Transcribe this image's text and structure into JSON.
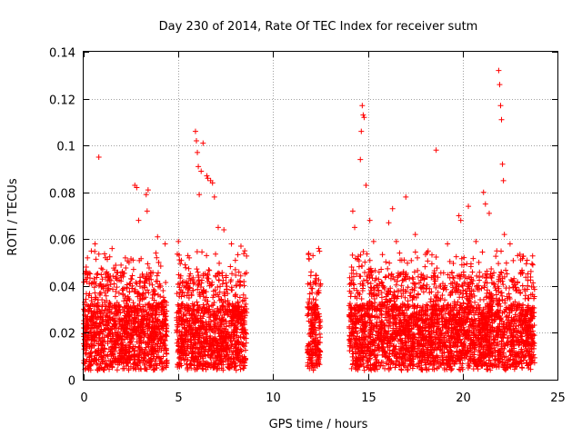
{
  "chart_data": {
    "type": "scatter",
    "title": "Day 230 of 2014, Rate Of TEC Index for receiver sutm",
    "xlabel": "GPS time / hours",
    "ylabel": "ROTI / TECUs",
    "xlim": [
      0,
      25
    ],
    "ylim": [
      0,
      0.14
    ],
    "x_ticks": [
      0,
      5,
      10,
      15,
      20,
      25
    ],
    "x_tick_labels": [
      "0",
      "5",
      "10",
      "15",
      "20",
      "25"
    ],
    "y_ticks": [
      0,
      0.02,
      0.04,
      0.06,
      0.08,
      0.1,
      0.12,
      0.14
    ],
    "y_tick_labels": [
      "0",
      "0.02",
      "0.04",
      "0.06",
      "0.08",
      "0.1",
      "0.12",
      "0.14"
    ],
    "grid": true,
    "marker": "+",
    "series_color": "#ff0000",
    "data_coverage": [
      {
        "start_hour": 0.0,
        "end_hour": 4.4
      },
      {
        "start_hour": 4.9,
        "end_hour": 8.6
      },
      {
        "start_hour": 11.8,
        "end_hour": 12.5
      },
      {
        "start_hour": 14.0,
        "end_hour": 23.8
      }
    ],
    "series": [
      {
        "name": "ROTI",
        "points": [
          [
            0.05,
            0.033
          ],
          [
            0.2,
            0.052
          ],
          [
            0.4,
            0.041
          ],
          [
            0.6,
            0.058
          ],
          [
            0.8,
            0.095
          ],
          [
            1.0,
            0.047
          ],
          [
            1.5,
            0.056
          ],
          [
            2.2,
            0.052
          ],
          [
            2.7,
            0.083
          ],
          [
            2.8,
            0.082
          ],
          [
            2.9,
            0.068
          ],
          [
            3.3,
            0.079
          ],
          [
            3.35,
            0.072
          ],
          [
            3.4,
            0.081
          ],
          [
            3.9,
            0.061
          ],
          [
            4.3,
            0.058
          ],
          [
            5.0,
            0.059
          ],
          [
            5.5,
            0.053
          ],
          [
            5.9,
            0.106
          ],
          [
            5.95,
            0.102
          ],
          [
            6.0,
            0.097
          ],
          [
            6.05,
            0.091
          ],
          [
            6.1,
            0.079
          ],
          [
            6.2,
            0.089
          ],
          [
            6.3,
            0.101
          ],
          [
            6.5,
            0.087
          ],
          [
            6.55,
            0.086
          ],
          [
            6.7,
            0.085
          ],
          [
            6.8,
            0.084
          ],
          [
            6.9,
            0.078
          ],
          [
            7.1,
            0.065
          ],
          [
            7.4,
            0.064
          ],
          [
            7.8,
            0.058
          ],
          [
            8.3,
            0.057
          ],
          [
            8.5,
            0.055
          ],
          [
            11.9,
            0.031
          ],
          [
            12.0,
            0.046
          ],
          [
            12.1,
            0.053
          ],
          [
            12.2,
            0.042
          ],
          [
            12.4,
            0.056
          ],
          [
            14.2,
            0.072
          ],
          [
            14.3,
            0.065
          ],
          [
            14.6,
            0.094
          ],
          [
            14.65,
            0.106
          ],
          [
            14.7,
            0.117
          ],
          [
            14.75,
            0.113
          ],
          [
            14.8,
            0.112
          ],
          [
            14.9,
            0.083
          ],
          [
            15.1,
            0.068
          ],
          [
            15.3,
            0.059
          ],
          [
            16.1,
            0.067
          ],
          [
            16.3,
            0.073
          ],
          [
            16.5,
            0.059
          ],
          [
            17.0,
            0.078
          ],
          [
            17.5,
            0.062
          ],
          [
            18.6,
            0.098
          ],
          [
            19.2,
            0.058
          ],
          [
            19.8,
            0.07
          ],
          [
            19.9,
            0.068
          ],
          [
            20.3,
            0.074
          ],
          [
            20.7,
            0.059
          ],
          [
            21.1,
            0.08
          ],
          [
            21.2,
            0.075
          ],
          [
            21.4,
            0.071
          ],
          [
            21.9,
            0.132
          ],
          [
            21.95,
            0.126
          ],
          [
            22.0,
            0.117
          ],
          [
            22.05,
            0.111
          ],
          [
            22.1,
            0.092
          ],
          [
            22.15,
            0.085
          ],
          [
            22.2,
            0.062
          ],
          [
            22.5,
            0.058
          ],
          [
            22.9,
            0.053
          ],
          [
            23.4,
            0.051
          ],
          [
            23.7,
            0.049
          ]
        ]
      }
    ]
  }
}
